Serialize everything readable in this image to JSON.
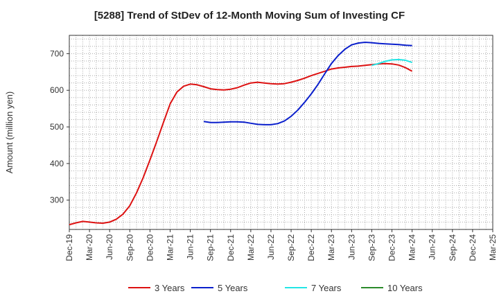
{
  "chart_data": {
    "type": "line",
    "title": "[5288]  Trend of StDev of 12-Month Moving Sum of Investing CF",
    "xlabel": "",
    "ylabel": "Amount (million yen)",
    "ylim": [
      220,
      750
    ],
    "yticks": [
      300,
      400,
      500,
      600,
      700
    ],
    "x_tick_labels": [
      "Dec-19",
      "Mar-20",
      "Jun-20",
      "Sep-20",
      "Dec-20",
      "Mar-21",
      "Jun-21",
      "Sep-21",
      "Dec-21",
      "Mar-22",
      "Jun-22",
      "Sep-22",
      "Dec-22",
      "Mar-23",
      "Jun-23",
      "Sep-23",
      "Dec-23",
      "Mar-24",
      "Jun-24",
      "Sep-24",
      "Dec-24",
      "Mar-25"
    ],
    "grid": true,
    "legend_position": "bottom",
    "series": [
      {
        "name": "3 Years",
        "color": "#dd1111",
        "points": [
          [
            "Dec-19",
            233
          ],
          [
            "Jan-20",
            238
          ],
          [
            "Feb-20",
            242
          ],
          [
            "Mar-20",
            240
          ],
          [
            "Apr-20",
            238
          ],
          [
            "May-20",
            237
          ],
          [
            "Jun-20",
            240
          ],
          [
            "Jul-20",
            248
          ],
          [
            "Aug-20",
            262
          ],
          [
            "Sep-20",
            285
          ],
          [
            "Oct-20",
            320
          ],
          [
            "Nov-20",
            362
          ],
          [
            "Dec-20",
            410
          ],
          [
            "Jan-21",
            460
          ],
          [
            "Feb-21",
            512
          ],
          [
            "Mar-21",
            563
          ],
          [
            "Apr-21",
            595
          ],
          [
            "May-21",
            611
          ],
          [
            "Jun-21",
            617
          ],
          [
            "Jul-21",
            615
          ],
          [
            "Aug-21",
            610
          ],
          [
            "Sep-21",
            604
          ],
          [
            "Oct-21",
            602
          ],
          [
            "Nov-21",
            601
          ],
          [
            "Dec-21",
            603
          ],
          [
            "Jan-22",
            607
          ],
          [
            "Feb-22",
            614
          ],
          [
            "Mar-22",
            620
          ],
          [
            "Apr-22",
            622
          ],
          [
            "May-22",
            620
          ],
          [
            "Jun-22",
            618
          ],
          [
            "Jul-22",
            617
          ],
          [
            "Aug-22",
            618
          ],
          [
            "Sep-22",
            622
          ],
          [
            "Oct-22",
            627
          ],
          [
            "Nov-22",
            633
          ],
          [
            "Dec-22",
            640
          ],
          [
            "Jan-23",
            646
          ],
          [
            "Feb-23",
            652
          ],
          [
            "Mar-23",
            658
          ],
          [
            "Apr-23",
            661
          ],
          [
            "May-23",
            663
          ],
          [
            "Jun-23",
            665
          ],
          [
            "Jul-23",
            666
          ],
          [
            "Aug-23",
            668
          ],
          [
            "Sep-23",
            670
          ],
          [
            "Oct-23",
            672
          ],
          [
            "Nov-23",
            673
          ],
          [
            "Dec-23",
            672
          ],
          [
            "Jan-24",
            669
          ],
          [
            "Feb-24",
            662
          ],
          [
            "Mar-24",
            652
          ]
        ]
      },
      {
        "name": "5 Years",
        "color": "#0a1fcc",
        "points": [
          [
            "Aug-21",
            515
          ],
          [
            "Sep-21",
            512
          ],
          [
            "Oct-21",
            512
          ],
          [
            "Nov-21",
            513
          ],
          [
            "Dec-21",
            514
          ],
          [
            "Jan-22",
            514
          ],
          [
            "Feb-22",
            513
          ],
          [
            "Mar-22",
            510
          ],
          [
            "Apr-22",
            507
          ],
          [
            "May-22",
            506
          ],
          [
            "Jun-22",
            506
          ],
          [
            "Jul-22",
            509
          ],
          [
            "Aug-22",
            516
          ],
          [
            "Sep-22",
            529
          ],
          [
            "Oct-22",
            546
          ],
          [
            "Nov-22",
            567
          ],
          [
            "Dec-22",
            590
          ],
          [
            "Jan-23",
            616
          ],
          [
            "Feb-23",
            645
          ],
          [
            "Mar-23",
            673
          ],
          [
            "Apr-23",
            695
          ],
          [
            "May-23",
            712
          ],
          [
            "Jun-23",
            724
          ],
          [
            "Jul-23",
            729
          ],
          [
            "Aug-23",
            731
          ],
          [
            "Sep-23",
            730
          ],
          [
            "Oct-23",
            728
          ],
          [
            "Nov-23",
            727
          ],
          [
            "Dec-23",
            726
          ],
          [
            "Jan-24",
            725
          ],
          [
            "Feb-24",
            723
          ],
          [
            "Mar-24",
            722
          ]
        ]
      },
      {
        "name": "7 Years",
        "color": "#22e5e5",
        "points": [
          [
            "Sep-23",
            668
          ],
          [
            "Oct-23",
            673
          ],
          [
            "Nov-23",
            679
          ],
          [
            "Dec-23",
            683
          ],
          [
            "Jan-24",
            684
          ],
          [
            "Feb-24",
            682
          ],
          [
            "Mar-24",
            676
          ]
        ]
      },
      {
        "name": "10 Years",
        "color": "#2a8a2a",
        "points": []
      }
    ]
  }
}
